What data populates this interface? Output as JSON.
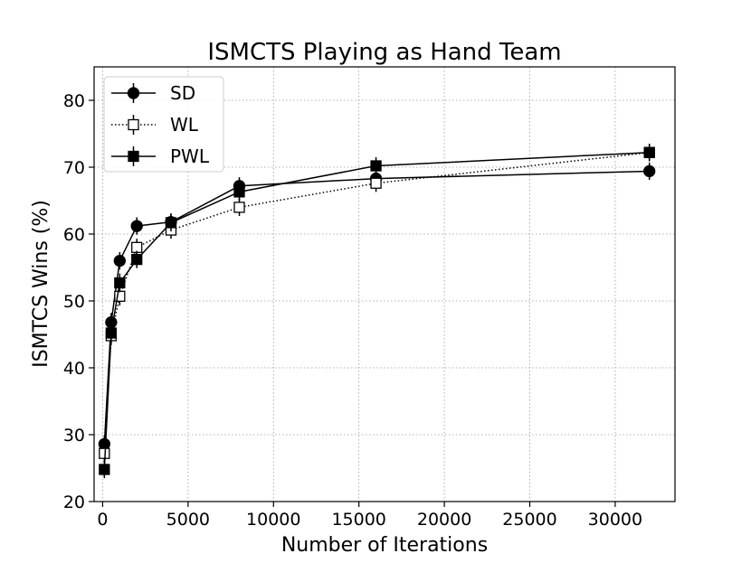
{
  "chart_data": {
    "type": "line",
    "title": "ISMCTS Playing as Hand Team",
    "xlabel": "Number of Iterations",
    "ylabel": "ISMTCS Wins (%)",
    "xlim": [
      -500,
      33500
    ],
    "ylim": [
      20,
      85
    ],
    "xticks": [
      0,
      5000,
      10000,
      15000,
      20000,
      25000,
      30000
    ],
    "yticks": [
      20,
      30,
      40,
      50,
      60,
      70,
      80
    ],
    "grid": true,
    "legend_position": "top-left",
    "x": [
      100,
      500,
      1000,
      2000,
      4000,
      8000,
      16000,
      32000
    ],
    "series": [
      {
        "name": "SD",
        "marker": "circle",
        "fill": "#000000",
        "linestyle": "solid",
        "values": [
          28.6,
          46.8,
          56.0,
          61.2,
          61.8,
          67.2,
          68.3,
          69.4
        ],
        "errors": [
          1.3,
          1.4,
          1.3,
          1.3,
          1.3,
          1.3,
          1.3,
          1.3
        ]
      },
      {
        "name": "WL",
        "marker": "square",
        "fill": "#ffffff",
        "linestyle": "dotted",
        "values": [
          27.2,
          44.8,
          50.7,
          58.0,
          60.6,
          64.0,
          67.6,
          72.2
        ],
        "errors": [
          1.3,
          1.4,
          1.4,
          1.3,
          1.3,
          1.3,
          1.3,
          1.3
        ]
      },
      {
        "name": "PWL",
        "marker": "square",
        "fill": "#000000",
        "linestyle": "solid",
        "values": [
          24.8,
          45.2,
          52.7,
          56.2,
          61.7,
          66.3,
          70.2,
          72.2
        ],
        "errors": [
          1.3,
          1.4,
          1.4,
          1.3,
          1.3,
          1.3,
          1.3,
          1.3
        ]
      }
    ]
  }
}
